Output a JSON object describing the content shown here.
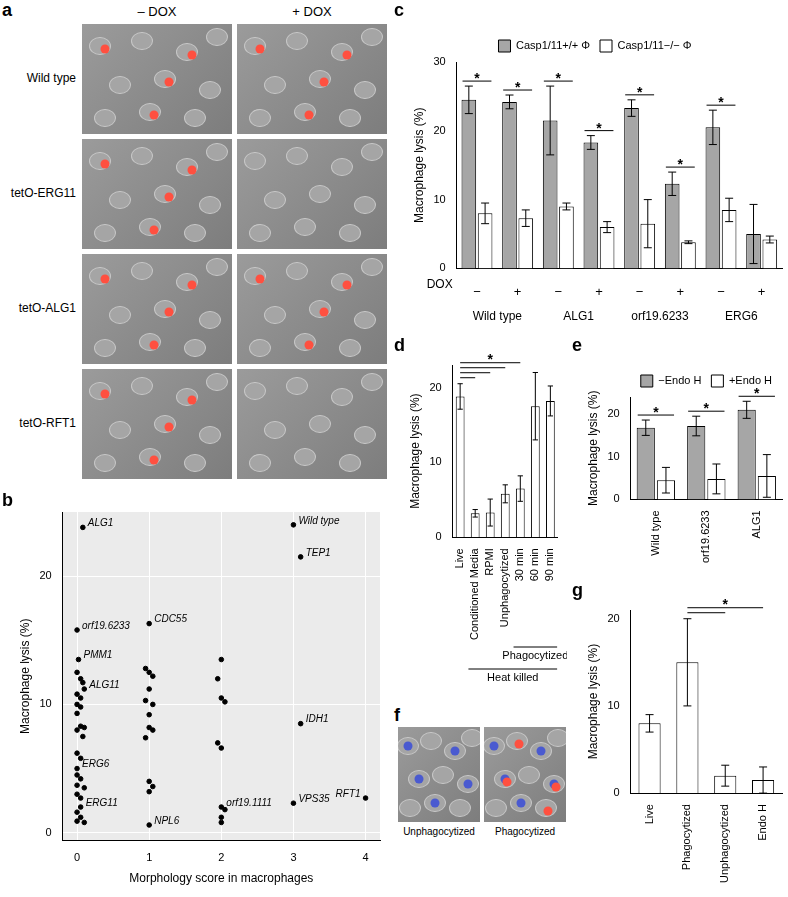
{
  "image_panels": [
    {
      "panel_label": "a",
      "columns": [
        "– DOX",
        "+ DOX"
      ],
      "rows": [
        "Wild type",
        "tetO-ERG11",
        "tetO-ALG1",
        "tetO-RFT1"
      ]
    },
    {
      "panel_label": "f",
      "captions": [
        "Unphagocytized",
        "Phagocytized"
      ]
    }
  ],
  "chart_data": [
    {
      "panel_label": "b",
      "type": "scatter",
      "xlabel": "Morphology score in macrophages",
      "ylabel": "Macrophage lysis (%)",
      "x": [
        3.0,
        0.08,
        3.1,
        0.0,
        1.0,
        0.02,
        0.1,
        3.1,
        0.0,
        0.05,
        1.0,
        2.0,
        3.0,
        4.0,
        0,
        0.05,
        0.08,
        0,
        0.05,
        0,
        0.05,
        0,
        0.05,
        0.1,
        0,
        0.08,
        0,
        0.05,
        0,
        0.05,
        0,
        0.1,
        0,
        0.05,
        0,
        0.05,
        0,
        0.1,
        0.95,
        1,
        1.05,
        1,
        0.95,
        1.05,
        1,
        1,
        1.05,
        0.95,
        1,
        1.05,
        1,
        2,
        1.95,
        2,
        2.05,
        1.95,
        2,
        2.05,
        2,
        2
      ],
      "y": [
        24.0,
        23.8,
        21.5,
        15.8,
        16.3,
        13.5,
        11.2,
        8.5,
        5.0,
        2.0,
        0.6,
        2.0,
        2.3,
        2.7,
        12.5,
        12,
        11.7,
        10.8,
        10.5,
        10,
        9.8,
        9.3,
        8.3,
        8.2,
        8,
        7.5,
        6.2,
        5.8,
        4.5,
        4.2,
        3.7,
        3.5,
        3,
        2.7,
        1.6,
        1.2,
        0.9,
        0.8,
        12.8,
        12.5,
        12.2,
        11.2,
        10.3,
        10,
        9.2,
        8.2,
        8,
        7.4,
        4,
        3.6,
        3.2,
        13.5,
        12,
        10.5,
        10.2,
        7,
        6.6,
        1.8,
        1.2,
        0.8
      ],
      "point_labels": [
        "Wild type",
        "ALG1",
        "TEP1",
        "orf19.6233",
        "CDC55",
        "PMM1",
        "ALG11",
        "IDH1",
        "ERG6",
        "ERG11",
        "NPL6",
        "orf19.1111",
        "VPS35",
        "RFT1",
        null,
        null,
        null,
        null,
        null,
        null,
        null,
        null,
        null,
        null,
        null,
        null,
        null,
        null,
        null,
        null,
        null,
        null,
        null,
        null,
        null,
        null,
        null,
        null,
        null,
        null,
        null,
        null,
        null,
        null,
        null,
        null,
        null,
        null,
        null,
        null,
        null,
        null,
        null,
        null,
        null,
        null,
        null,
        null,
        null,
        null
      ],
      "color": "#000000",
      "xlim": [
        -0.2,
        4.2
      ],
      "xticks": [
        0,
        1,
        2,
        3,
        4
      ],
      "ylim": [
        -0.6,
        25
      ],
      "yticks": [
        0,
        10,
        20
      ],
      "grid": true
    },
    {
      "panel_label": "c",
      "type": "bar",
      "ylabel": "Macrophage lysis (%)",
      "xlabel": "DOX",
      "categories": [
        "−",
        "+",
        "−",
        "+",
        "−",
        "+",
        "−",
        "+"
      ],
      "group_labels": [
        "Wild type",
        "ALG1",
        "orf19.6233",
        "ERG6"
      ],
      "series": [
        {
          "name": "Casp1/11+/+ Φ",
          "color": "#a6a6a6",
          "values": [
            24.5,
            24.2,
            21.5,
            18.3,
            23.3,
            12.3,
            20.5,
            5.0
          ],
          "errors": [
            2.0,
            1.0,
            5.0,
            1.0,
            1.2,
            1.7,
            2.5,
            4.3
          ]
        },
        {
          "name": "Casp1/11−/− Φ",
          "color": "#ffffff",
          "values": [
            8.0,
            7.3,
            9.0,
            6.0,
            6.5,
            3.8,
            8.5,
            4.2
          ],
          "errors": [
            1.5,
            1.2,
            0.5,
            0.8,
            3.5,
            0.2,
            1.7,
            0.5
          ]
        }
      ],
      "significance": [
        "*",
        "*",
        "*",
        "*",
        "*",
        "*",
        "*",
        null
      ],
      "ylim": [
        0,
        30
      ],
      "yticks": [
        0,
        10,
        20,
        30
      ],
      "legend": "top"
    },
    {
      "panel_label": "d",
      "type": "bar",
      "ylabel": "Macrophage lysis (%)",
      "categories": [
        "Live",
        "Conditioned Media",
        "RPMI",
        "Unphagocytized",
        "30 min",
        "60 min",
        "90 min"
      ],
      "values": [
        18.8,
        3.2,
        3.3,
        5.8,
        6.5,
        17.5,
        18.2
      ],
      "errors": [
        1.7,
        0.5,
        1.8,
        1.2,
        1.7,
        4.5,
        2.0
      ],
      "color": "#ffffff",
      "groups": [
        {
          "label": "Phagocytized",
          "from": "30 min",
          "to": "90 min"
        },
        {
          "label": "Heat killed",
          "from": "Conditioned Media",
          "to": "90 min"
        }
      ],
      "comparisons": {
        "label": "*",
        "from": "Live",
        "to": [
          "Conditioned Media",
          "RPMI",
          "Unphagocytized",
          "30 min"
        ]
      },
      "ylim": [
        0,
        23
      ],
      "yticks": [
        0,
        10,
        20
      ]
    },
    {
      "panel_label": "e",
      "type": "bar",
      "ylabel": "Macrophage lysis (%)",
      "categories": [
        "Wild type",
        "orf19.6233",
        "ALG1"
      ],
      "series": [
        {
          "name": "−Endo H",
          "color": "#a6a6a6",
          "values": [
            16.8,
            17.2,
            21.0
          ],
          "errors": [
            1.8,
            2.3,
            2.0
          ]
        },
        {
          "name": "+Endo H",
          "color": "#ffffff",
          "values": [
            4.5,
            4.8,
            5.5
          ],
          "errors": [
            3.0,
            3.5,
            5.0
          ]
        }
      ],
      "significance": [
        "*",
        "*",
        "*"
      ],
      "ylim": [
        0,
        24
      ],
      "yticks": [
        0,
        10,
        20
      ],
      "legend": "top right"
    },
    {
      "panel_label": "g",
      "type": "bar",
      "ylabel": "Macrophage lysis (%)",
      "categories": [
        "Live",
        "Phagocytized",
        "Unphagocytized",
        "Endo H"
      ],
      "values": [
        8.0,
        15.0,
        2.0,
        1.5
      ],
      "errors": [
        1.0,
        5.0,
        1.2,
        1.5
      ],
      "color": "#ffffff",
      "comparisons": {
        "label": "*",
        "from": "Phagocytized",
        "to": [
          "Unphagocytized",
          "Endo H"
        ]
      },
      "ylim": [
        0,
        21
      ],
      "yticks": [
        0,
        10,
        20
      ]
    }
  ]
}
